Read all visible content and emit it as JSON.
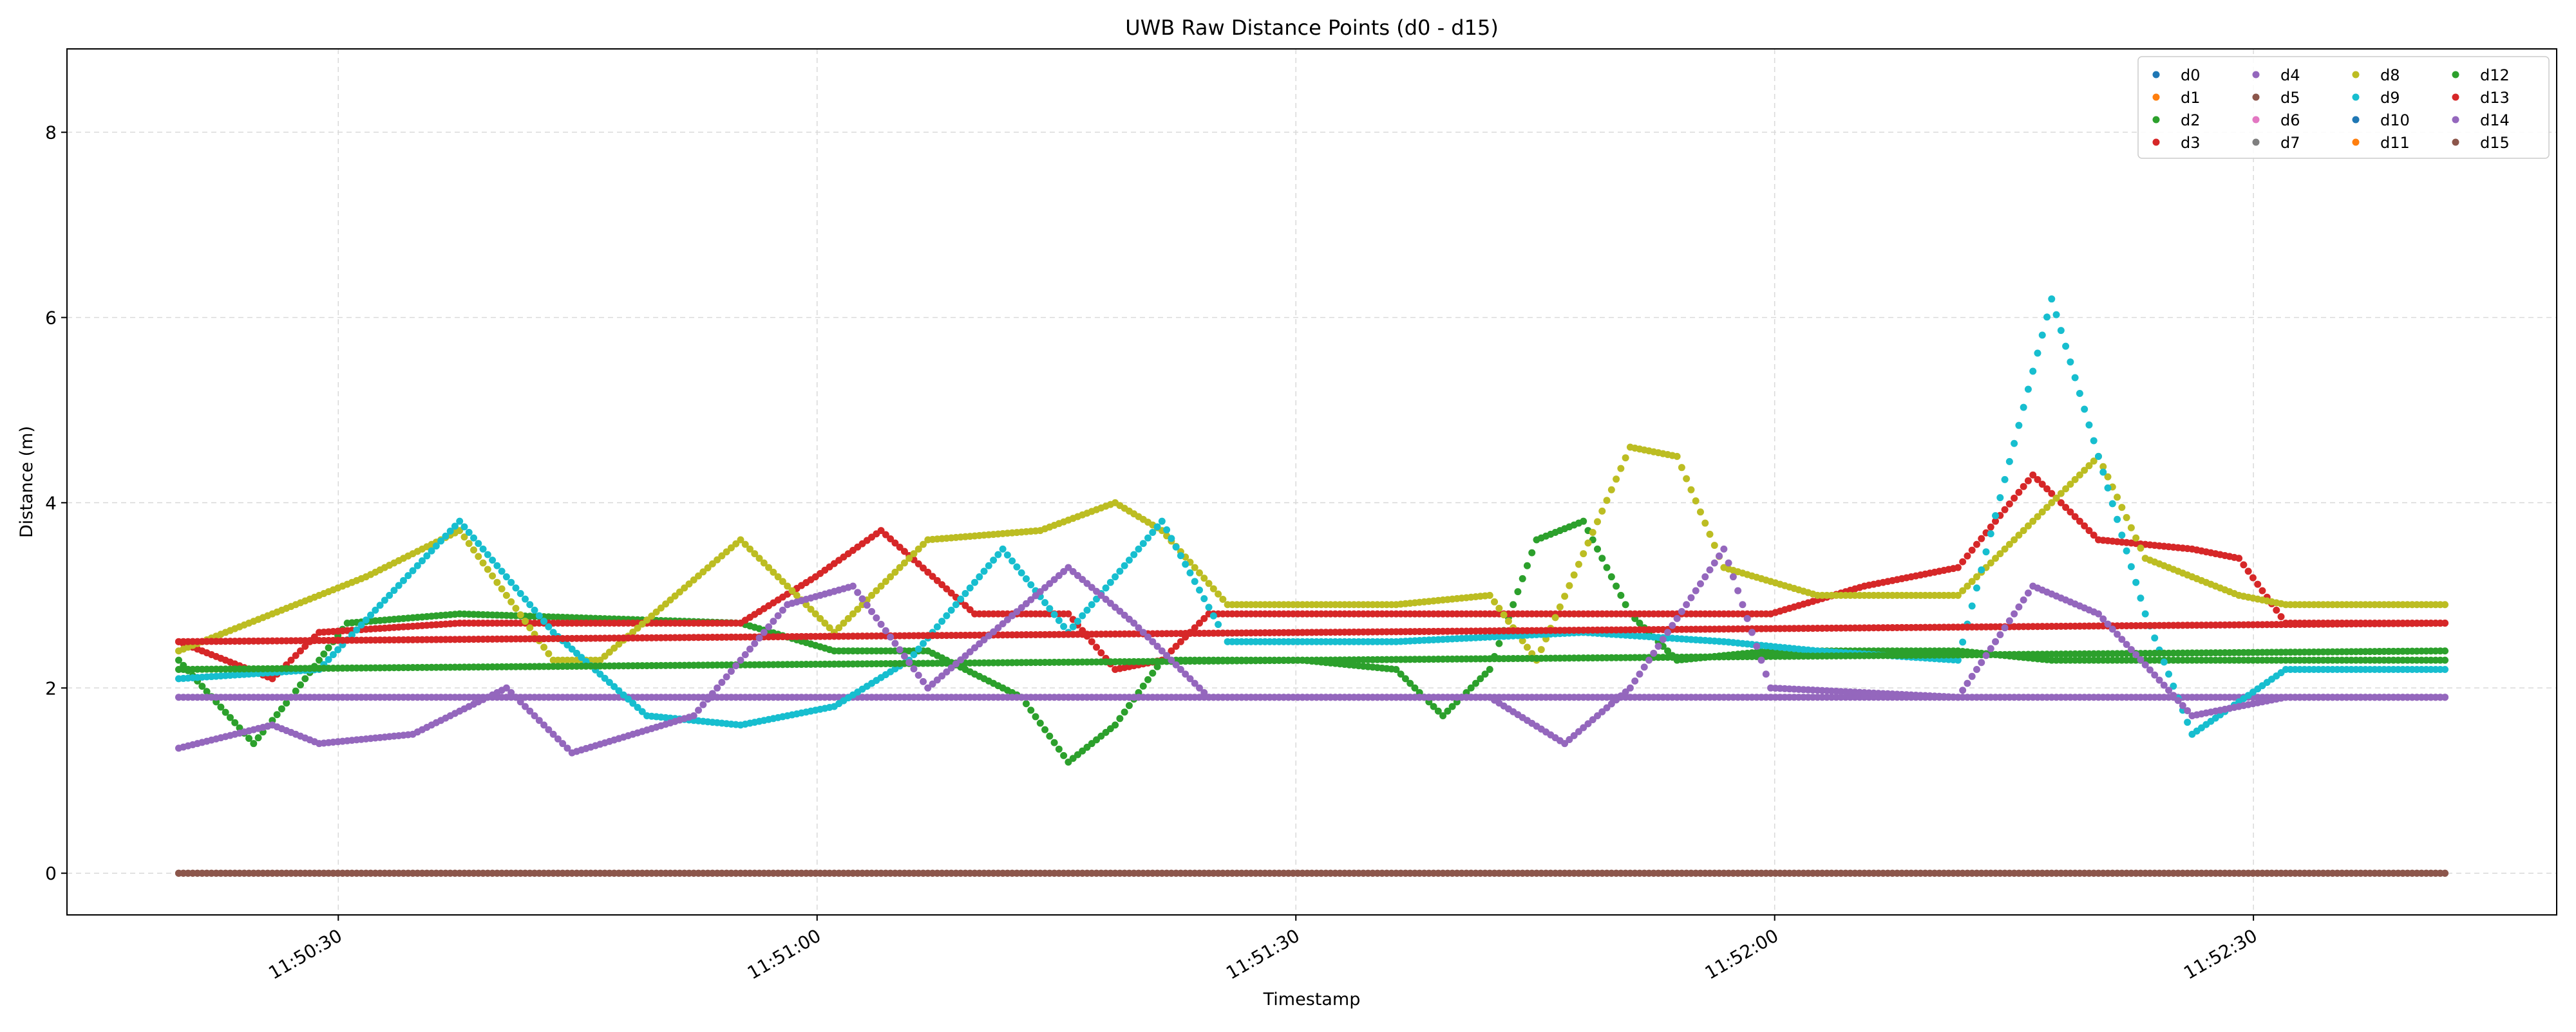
{
  "chart_data": {
    "type": "scatter",
    "title": "UWB Raw Distance Points (d0 - d15)",
    "xlabel": "Timestamp",
    "ylabel": "Distance (m)",
    "xlim": [
      "11:50:13",
      "11:52:49"
    ],
    "ylim": [
      -0.45,
      8.9
    ],
    "x_ticks": [
      "11:50:30",
      "11:51:00",
      "11:51:30",
      "11:52:00",
      "11:52:30"
    ],
    "y_ticks": [
      0,
      2,
      4,
      6,
      8
    ],
    "grid": true,
    "legend": {
      "position": "top-right",
      "columns": 4
    },
    "x_range_of_points": [
      "11:50:20",
      "11:52:42"
    ],
    "series": [
      {
        "name": "d0",
        "color": "#1f77b4",
        "values": [
          [
            0,
            0
          ]
        ]
      },
      {
        "name": "d1",
        "color": "#ff7f0e",
        "values": [
          [
            0,
            0
          ]
        ]
      },
      {
        "name": "d2",
        "color": "#2ca02c",
        "values": [
          [
            0,
            2.3
          ],
          [
            8,
            1.4
          ],
          [
            12,
            1.9
          ],
          [
            18,
            2.7
          ],
          [
            30,
            2.8
          ],
          [
            60,
            2.7
          ],
          [
            70,
            2.4
          ],
          [
            80,
            2.4
          ],
          [
            90,
            1.9
          ],
          [
            95,
            1.2
          ],
          [
            100,
            1.6
          ],
          [
            105,
            2.3
          ],
          [
            120,
            2.3
          ],
          [
            130,
            2.2
          ],
          [
            135,
            1.7
          ],
          [
            140,
            2.2
          ],
          [
            145,
            3.6
          ],
          [
            150,
            3.8
          ],
          [
            155,
            2.8
          ],
          [
            160,
            2.3
          ],
          [
            170,
            2.4
          ],
          [
            180,
            2.4
          ],
          [
            190,
            2.4
          ],
          [
            200,
            2.3
          ],
          [
            210,
            2.3
          ],
          [
            230,
            2.3
          ],
          [
            242,
            2.3
          ]
        ]
      },
      {
        "name": "d3",
        "color": "#d62728",
        "values": [
          [
            0,
            2.5
          ],
          [
            10,
            2.1
          ],
          [
            15,
            2.6
          ],
          [
            30,
            2.7
          ],
          [
            60,
            2.7
          ],
          [
            68,
            3.2
          ],
          [
            75,
            3.7
          ],
          [
            85,
            2.8
          ],
          [
            95,
            2.8
          ],
          [
            100,
            2.2
          ],
          [
            105,
            2.3
          ],
          [
            110,
            2.8
          ],
          [
            140,
            2.8
          ],
          [
            170,
            2.8
          ],
          [
            180,
            3.1
          ],
          [
            190,
            3.3
          ],
          [
            198,
            4.3
          ],
          [
            205,
            3.6
          ],
          [
            215,
            3.5
          ],
          [
            220,
            3.4
          ],
          [
            225,
            2.7
          ],
          [
            242,
            2.7
          ]
        ]
      },
      {
        "name": "d4",
        "color": "#9467bd",
        "values": [
          [
            0,
            1.9
          ],
          [
            30,
            1.9
          ],
          [
            60,
            1.9
          ],
          [
            100,
            1.9
          ],
          [
            140,
            1.9
          ],
          [
            170,
            1.9
          ],
          [
            200,
            1.9
          ],
          [
            242,
            1.9
          ]
        ]
      },
      {
        "name": "d5",
        "color": "#8c564b",
        "values": [
          [
            0,
            0
          ],
          [
            242,
            0
          ]
        ]
      },
      {
        "name": "d6",
        "color": "#e377c2",
        "values": [
          [
            0,
            0
          ]
        ]
      },
      {
        "name": "d7",
        "color": "#7f7f7f",
        "values": [
          [
            0,
            0
          ]
        ]
      },
      {
        "name": "d8",
        "color": "#bcbd22",
        "values": [
          [
            0,
            2.4
          ],
          [
            20,
            3.2
          ],
          [
            30,
            3.7
          ],
          [
            40,
            2.3
          ],
          [
            45,
            2.3
          ],
          [
            60,
            3.6
          ],
          [
            70,
            2.6
          ],
          [
            80,
            3.6
          ],
          [
            92,
            3.7
          ],
          [
            100,
            4.0
          ],
          [
            105,
            3.7
          ],
          [
            112,
            2.9
          ],
          [
            130,
            2.9
          ],
          [
            140,
            3.0
          ],
          [
            145,
            2.3
          ],
          [
            155,
            4.6
          ],
          [
            160,
            4.5
          ],
          [
            165,
            3.3
          ],
          [
            175,
            3.0
          ],
          [
            190,
            3.0
          ],
          [
            205,
            4.5
          ],
          [
            210,
            3.4
          ],
          [
            220,
            3.0
          ],
          [
            225,
            2.9
          ],
          [
            242,
            2.9
          ]
        ]
      },
      {
        "name": "d9",
        "color": "#17becf",
        "values": [
          [
            0,
            2.1
          ],
          [
            15,
            2.2
          ],
          [
            30,
            3.8
          ],
          [
            40,
            2.6
          ],
          [
            50,
            1.7
          ],
          [
            60,
            1.6
          ],
          [
            70,
            1.8
          ],
          [
            78,
            2.3
          ],
          [
            88,
            3.5
          ],
          [
            95,
            2.6
          ],
          [
            105,
            3.8
          ],
          [
            112,
            2.5
          ],
          [
            130,
            2.5
          ],
          [
            150,
            2.6
          ],
          [
            165,
            2.5
          ],
          [
            175,
            2.4
          ],
          [
            190,
            2.3
          ],
          [
            200,
            6.2
          ],
          [
            210,
            2.8
          ],
          [
            215,
            1.5
          ],
          [
            225,
            2.2
          ],
          [
            242,
            2.2
          ]
        ]
      },
      {
        "name": "d10",
        "color": "#1f77b4",
        "values": [
          [
            0,
            0
          ]
        ]
      },
      {
        "name": "d11",
        "color": "#ff7f0e",
        "values": [
          [
            0,
            0
          ]
        ]
      },
      {
        "name": "d12",
        "color": "#2ca02c",
        "values": [
          [
            0,
            2.2
          ],
          [
            242,
            2.4
          ]
        ]
      },
      {
        "name": "d13",
        "color": "#d62728",
        "values": [
          [
            0,
            2.5
          ],
          [
            242,
            2.7
          ]
        ]
      },
      {
        "name": "d14",
        "color": "#9467bd",
        "values": [
          [
            0,
            1.35
          ],
          [
            10,
            1.6
          ],
          [
            15,
            1.4
          ],
          [
            25,
            1.5
          ],
          [
            35,
            2.0
          ],
          [
            42,
            1.3
          ],
          [
            55,
            1.7
          ],
          [
            65,
            2.9
          ],
          [
            72,
            3.1
          ],
          [
            80,
            2.0
          ],
          [
            95,
            3.3
          ],
          [
            102,
            2.7
          ],
          [
            110,
            1.9
          ],
          [
            140,
            1.9
          ],
          [
            148,
            1.4
          ],
          [
            155,
            2.0
          ],
          [
            165,
            3.5
          ],
          [
            170,
            2.0
          ],
          [
            190,
            1.9
          ],
          [
            198,
            3.1
          ],
          [
            205,
            2.8
          ],
          [
            215,
            1.7
          ],
          [
            225,
            1.9
          ],
          [
            242,
            1.9
          ]
        ]
      },
      {
        "name": "d15",
        "color": "#8c564b",
        "values": [
          [
            0,
            0
          ],
          [
            242,
            0
          ]
        ]
      }
    ]
  }
}
